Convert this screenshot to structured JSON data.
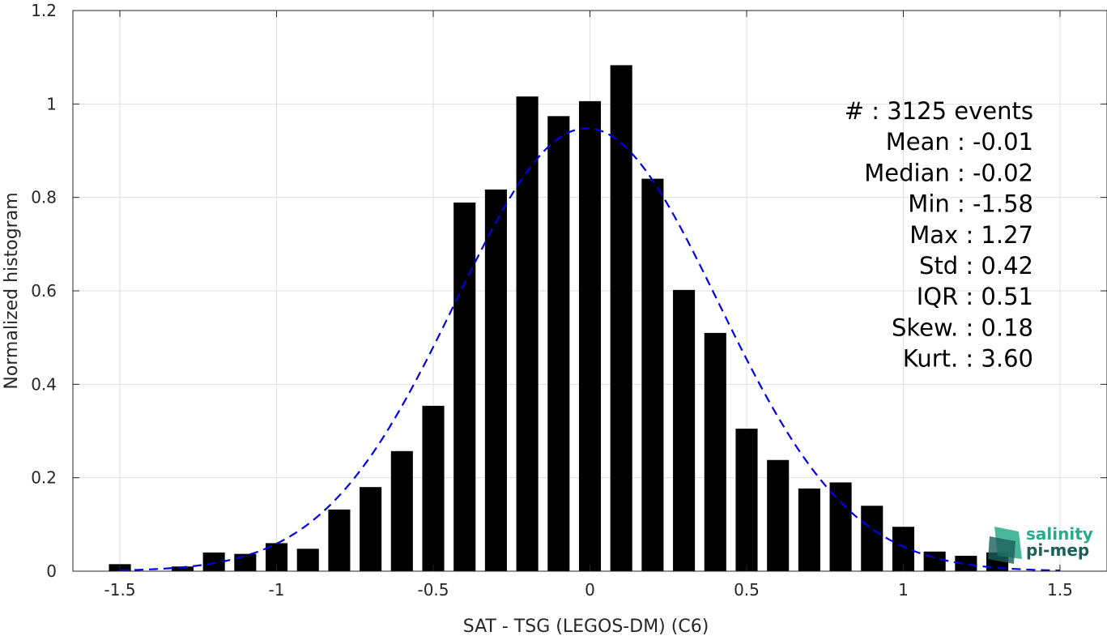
{
  "chart_data": {
    "type": "bar",
    "xlabel": "SAT - TSG (LEGOS-DM) (C6)",
    "ylabel": "Normalized histogram",
    "xlim": [
      -1.65,
      1.65
    ],
    "ylim": [
      0,
      1.2
    ],
    "xticks": [
      -1.5,
      -1,
      -0.5,
      0,
      0.5,
      1,
      1.5
    ],
    "xtick_labels": [
      "-1.5",
      "-1",
      "-0.5",
      "0",
      "0.5",
      "1",
      "1.5"
    ],
    "yticks": [
      0,
      0.2,
      0.4,
      0.6,
      0.8,
      1,
      1.2
    ],
    "ytick_labels": [
      "0",
      "0.2",
      "0.4",
      "0.6",
      "0.8",
      "1",
      "1.2"
    ],
    "grid": true,
    "bar_color": "#000000",
    "curve_color": "#0000e6",
    "bins": [
      {
        "x": -1.5,
        "value": 0.015
      },
      {
        "x": -1.4,
        "value": 0.0
      },
      {
        "x": -1.3,
        "value": 0.01
      },
      {
        "x": -1.2,
        "value": 0.04
      },
      {
        "x": -1.1,
        "value": 0.037
      },
      {
        "x": -1.0,
        "value": 0.06
      },
      {
        "x": -0.9,
        "value": 0.048
      },
      {
        "x": -0.8,
        "value": 0.132
      },
      {
        "x": -0.7,
        "value": 0.18
      },
      {
        "x": -0.6,
        "value": 0.257
      },
      {
        "x": -0.5,
        "value": 0.354
      },
      {
        "x": -0.4,
        "value": 0.789
      },
      {
        "x": -0.3,
        "value": 0.817
      },
      {
        "x": -0.2,
        "value": 1.016
      },
      {
        "x": -0.1,
        "value": 0.974
      },
      {
        "x": 0.0,
        "value": 1.006
      },
      {
        "x": 0.1,
        "value": 1.083
      },
      {
        "x": 0.2,
        "value": 0.84
      },
      {
        "x": 0.3,
        "value": 0.602
      },
      {
        "x": 0.4,
        "value": 0.51
      },
      {
        "x": 0.5,
        "value": 0.305
      },
      {
        "x": 0.6,
        "value": 0.238
      },
      {
        "x": 0.7,
        "value": 0.177
      },
      {
        "x": 0.8,
        "value": 0.19
      },
      {
        "x": 0.9,
        "value": 0.14
      },
      {
        "x": 1.0,
        "value": 0.095
      },
      {
        "x": 1.1,
        "value": 0.042
      },
      {
        "x": 1.2,
        "value": 0.033
      },
      {
        "x": 1.3,
        "value": 0.04
      }
    ],
    "fit_curve": {
      "style": "dashed",
      "mean": -0.01,
      "std": 0.42,
      "peak": 0.948,
      "x_range": [
        -1.5,
        1.5
      ]
    },
    "stats_lines": [
      "#  : 3125 events",
      "Mean : -0.01",
      "Median : -0.02",
      "Min : -1.58",
      "Max : 1.27",
      "Std : 0.42",
      "IQR : 0.51",
      "Skew. : 0.18",
      "Kurt. : 3.60"
    ]
  },
  "logo": {
    "line1": "salinity",
    "line2": "pi-mep",
    "color_top": "#2aaa8a",
    "color_bottom": "#1c5f5a"
  }
}
